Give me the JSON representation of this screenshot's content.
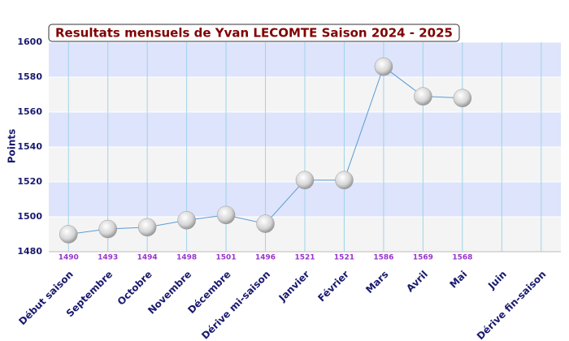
{
  "chart_data": {
    "type": "line",
    "title": "Resultats mensuels de Yvan LECOMTE Saison 2024 - 2025",
    "y_label": "Points",
    "categories": [
      "Début saison",
      "Septembre",
      "Octobre",
      "Novembre",
      "Décembre",
      "Dérive mi-saison",
      "Janvier",
      "Février",
      "Mars",
      "Avril",
      "Mai",
      "Juin",
      "Dérive fin-saison"
    ],
    "series": [
      {
        "name": "Points",
        "color": "#5b9bd5",
        "values": [
          1490,
          1493,
          1494,
          1498,
          1501,
          1496,
          1521,
          1521,
          1586,
          1569,
          1568,
          null,
          null
        ]
      }
    ],
    "ylim": [
      1480,
      1600
    ],
    "yticks": [
      1480,
      1500,
      1520,
      1540,
      1560,
      1580,
      1600
    ],
    "grid": true
  }
}
